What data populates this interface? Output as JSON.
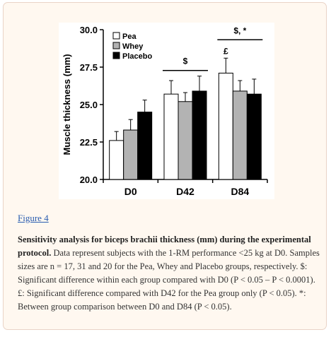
{
  "figure_link": "Figure 4",
  "caption": {
    "title": "Sensitivity analysis for biceps brachii thickness (mm) during the experimental protocol.",
    "body": "Data represent subjects with the 1-RM performance <25 kg at D0. Samples sizes are n = 17, 31 and 20 for the Pea, Whey and Placebo groups, respectively. $: Significant difference within each group compared with D0 (P < 0.05 – P < 0.0001). £: Significant difference compared with D42 for the Pea group only (P < 0.05). *: Between group comparison between D0 and D84 (P < 0.05)."
  },
  "chart_data": {
    "type": "bar",
    "title": "",
    "xlabel": "",
    "ylabel": "Muscle thickness (mm)",
    "ylim": [
      20.0,
      30.0
    ],
    "yticks": [
      "20.0",
      "22.5",
      "25.0",
      "27.5",
      "30.0"
    ],
    "categories": [
      "D0",
      "D42",
      "D84"
    ],
    "series": [
      {
        "name": "Pea",
        "color": "#ffffff",
        "values": [
          22.6,
          25.7,
          27.1
        ],
        "errors": [
          0.6,
          0.9,
          1.0
        ]
      },
      {
        "name": "Whey",
        "color": "#b3b3b3",
        "values": [
          23.3,
          25.2,
          25.9
        ],
        "errors": [
          0.7,
          0.6,
          0.7
        ]
      },
      {
        "name": "Placebo",
        "color": "#000000",
        "values": [
          24.5,
          25.9,
          25.7
        ],
        "errors": [
          0.8,
          1.0,
          1.0
        ]
      }
    ],
    "legend_position": "top-left",
    "annotations": [
      {
        "text": "$",
        "category": "D42"
      },
      {
        "text": "$, *",
        "category": "D84"
      },
      {
        "text": "£",
        "category": "D84",
        "series": "Pea"
      }
    ]
  }
}
